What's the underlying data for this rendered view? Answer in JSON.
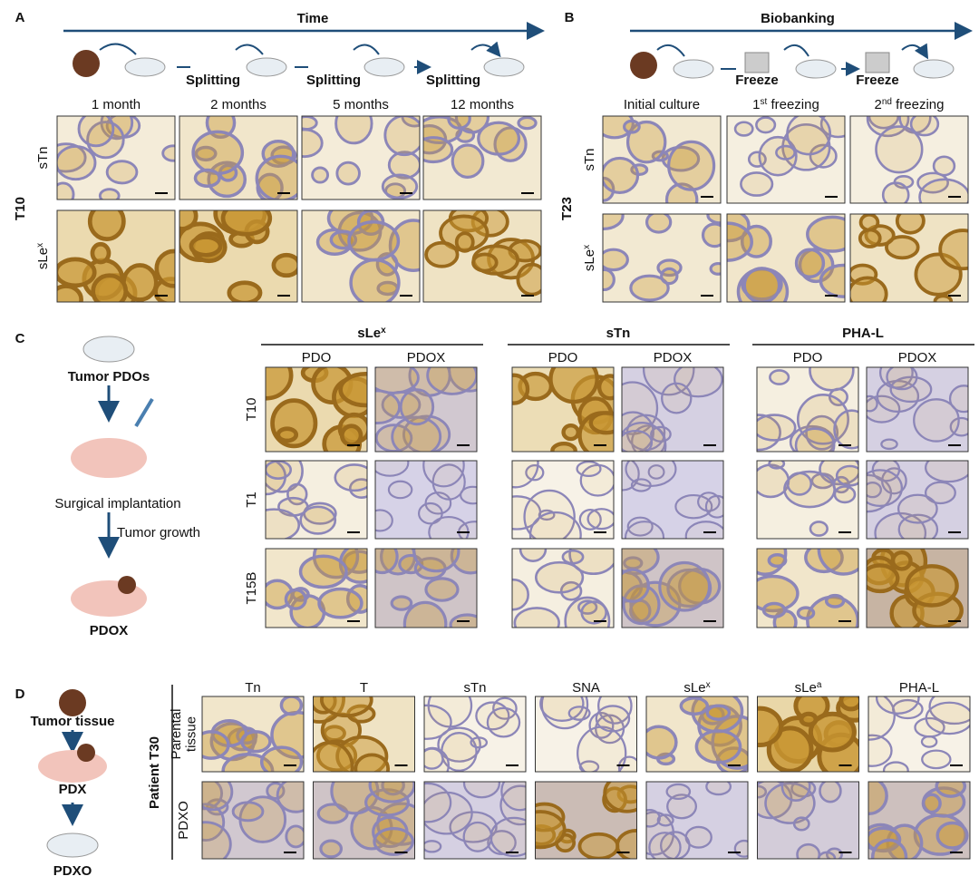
{
  "panel_a": {
    "label": "A",
    "arrow_title": "Time",
    "steps": [
      "Splitting",
      "Splitting",
      "Splitting"
    ],
    "columns": [
      "1 month",
      "2 months",
      "5 months",
      "12 months"
    ],
    "rows": [
      "sTn",
      {
        "base": "sLe",
        "sup": "x"
      }
    ],
    "sample": "T10"
  },
  "panel_b": {
    "label": "B",
    "arrow_title": "Biobanking",
    "steps": [
      "Freeze",
      "Freeze"
    ],
    "columns": [
      "Initial culture",
      {
        "base": "1",
        "sup": "st",
        "post": " freezing"
      },
      {
        "base": "2",
        "sup": "nd",
        "post": " freezing"
      }
    ],
    "rows": [
      "sTn",
      {
        "base": "sLe",
        "sup": "x"
      }
    ],
    "sample": "T23"
  },
  "panel_c": {
    "label": "C",
    "schematic": [
      "Tumor PDOs",
      "Surgical implantation",
      "Tumor growth",
      "PDOX"
    ],
    "groups": [
      {
        "name": {
          "base": "sLe",
          "sup": "x"
        },
        "columns": [
          "PDO",
          "PDOX"
        ]
      },
      {
        "name": "sTn",
        "columns": [
          "PDO",
          "PDOX"
        ]
      },
      {
        "name": "PHA-L",
        "columns": [
          "PDO",
          "PDOX"
        ]
      }
    ],
    "rows": [
      "T10",
      "T1",
      "T15B"
    ]
  },
  "panel_d": {
    "label": "D",
    "schematic": [
      "Tumor tissue",
      "PDX",
      "PDXO"
    ],
    "columns": [
      "Tn",
      "T",
      "sTn",
      "SNA",
      {
        "base": "sLe",
        "sup": "x"
      },
      {
        "base": "sLe",
        "sup": "a"
      },
      "PHA-L"
    ],
    "patient": "Patient T30",
    "rows": [
      [
        "Parental",
        "tissue"
      ],
      [
        "PDXO"
      ]
    ]
  }
}
